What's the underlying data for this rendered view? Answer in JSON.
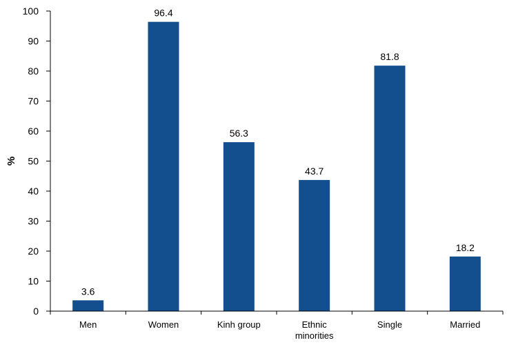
{
  "chart_data": {
    "type": "bar",
    "categories": [
      "Men",
      "Women",
      "Kinh group",
      "Ethnic minorities",
      "Single",
      "Married"
    ],
    "category_lines": [
      [
        "Men"
      ],
      [
        "Women"
      ],
      [
        "Kinh group"
      ],
      [
        "Ethnic",
        "minorities"
      ],
      [
        "Single"
      ],
      [
        "Married"
      ]
    ],
    "values": [
      3.6,
      96.4,
      56.3,
      43.7,
      81.8,
      18.2
    ],
    "data_labels": [
      "3.6",
      "96.4",
      "56.3",
      "43.7",
      "81.8",
      "18.2"
    ],
    "title": "",
    "xlabel": "",
    "ylabel": "%",
    "ylim": [
      0,
      100
    ],
    "yticks": [
      0,
      10,
      20,
      30,
      40,
      50,
      60,
      70,
      80,
      90,
      100
    ],
    "grid": false,
    "legend": "none",
    "bar_color": "#134e8f"
  }
}
